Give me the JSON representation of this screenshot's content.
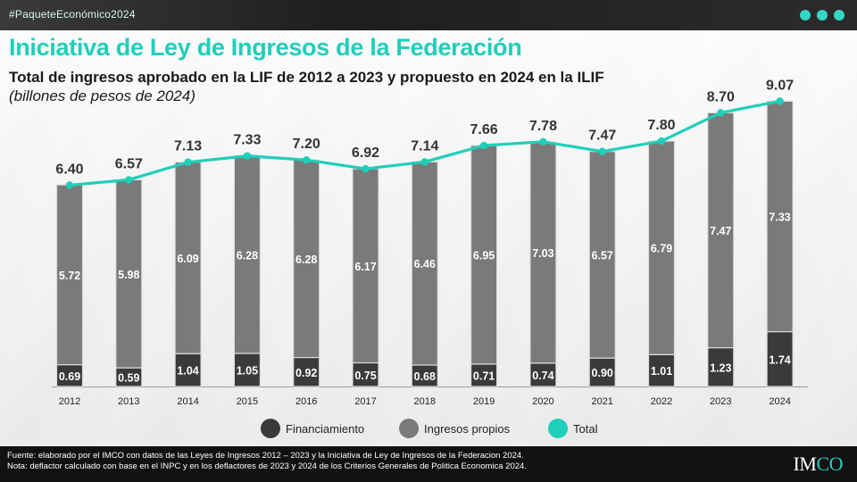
{
  "header": {
    "hashtag": "#PaqueteEconómico2024",
    "title": "Iniciativa de Ley de Ingresos de la Federación",
    "subtitle": "Total de ingresos aprobado en la LIF de 2012 a 2023 y propuesto en 2024 en la ILIF",
    "units": "(billones de pesos de 2024)"
  },
  "colors": {
    "financiamiento": "#3a3a3a",
    "ingresos_propios": "#7a7a7a",
    "total": "#1fcfba"
  },
  "chart_data": {
    "type": "bar",
    "stacked": true,
    "categories": [
      "2012",
      "2013",
      "2014",
      "2015",
      "2016",
      "2017",
      "2018",
      "2019",
      "2020",
      "2021",
      "2022",
      "2023",
      "2024"
    ],
    "series": [
      {
        "name": "Financiamiento",
        "type": "bar",
        "values": [
          0.69,
          0.59,
          1.04,
          1.05,
          0.92,
          0.75,
          0.68,
          0.71,
          0.74,
          0.9,
          1.01,
          1.23,
          1.74
        ],
        "labels": [
          "0.69",
          "0.59",
          "1.04",
          "1.05",
          "0.92",
          "0.75",
          "0.68",
          "0.71",
          "0.74",
          "0.90",
          "1.01",
          "1.23",
          "1.74"
        ]
      },
      {
        "name": "Ingresos propios",
        "type": "bar",
        "values": [
          5.72,
          5.98,
          6.09,
          6.28,
          6.28,
          6.17,
          6.46,
          6.95,
          7.03,
          6.57,
          6.79,
          7.47,
          7.33
        ],
        "labels": [
          "5.72",
          "5.98",
          "6.09",
          "6.28",
          "6.28",
          "6.17",
          "6.46",
          "6.95",
          "7.03",
          "6.57",
          "6.79",
          "7.47",
          "7.33"
        ]
      },
      {
        "name": "Total",
        "type": "line",
        "values": [
          6.4,
          6.57,
          7.13,
          7.33,
          7.2,
          6.92,
          7.14,
          7.66,
          7.78,
          7.47,
          7.8,
          8.7,
          9.07
        ],
        "labels": [
          "6.40",
          "6.57",
          "7.13",
          "7.33",
          "7.20",
          "6.92",
          "7.14",
          "7.66",
          "7.78",
          "7.47",
          "7.80",
          "8.70",
          "9.07"
        ]
      }
    ],
    "ylim": [
      0,
      9.5
    ],
    "legend": {
      "position": "bottom",
      "items": [
        "Financiamiento",
        "Ingresos propios",
        "Total"
      ]
    }
  },
  "footer": {
    "source": "Fuente: elaborado por el IMCO con datos de las Leyes de Ingresos 2012 – 2023 y la  Iniciativa de Ley de Ingresos de la Federacion 2024.",
    "note": "Nota: deflactor calculado con base en el INPC y en los deflactores de 2023 y 2024 de los Criterios Generales de Politica Economica 2024.",
    "logo_prefix": "IM",
    "logo_o": "CO"
  }
}
